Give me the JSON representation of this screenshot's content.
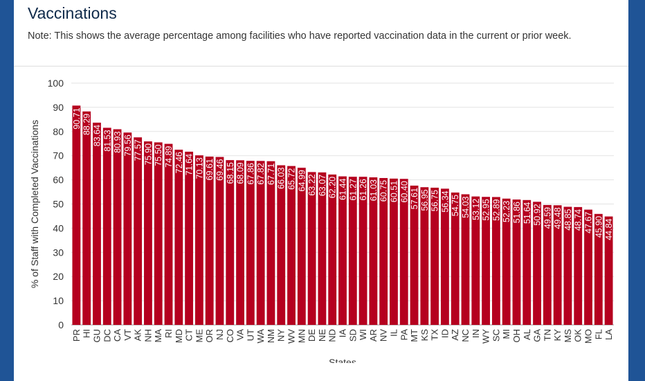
{
  "header": {
    "title": "Vaccinations",
    "note": "Note: This shows the average percentage among facilities who have reported vaccination data in the current or prior week."
  },
  "chart_data": {
    "type": "bar",
    "xlabel": "States",
    "ylabel": "% of Staff with Completed Vaccinations",
    "ylim": [
      0,
      100
    ],
    "yticks": [
      0,
      10,
      20,
      30,
      40,
      50,
      60,
      70,
      80,
      90,
      100
    ],
    "grid": true,
    "color": "#b5001f",
    "categories": [
      "PR",
      "HI",
      "GU",
      "DC",
      "CA",
      "VT",
      "AK",
      "NH",
      "MA",
      "RI",
      "MD",
      "CT",
      "ME",
      "OR",
      "NJ",
      "CO",
      "VA",
      "UT",
      "WA",
      "NM",
      "NY",
      "WV",
      "MN",
      "DE",
      "NE",
      "ND",
      "IA",
      "SD",
      "WI",
      "AR",
      "NV",
      "IL",
      "PA",
      "MT",
      "KS",
      "TX",
      "ID",
      "AZ",
      "NC",
      "IN",
      "WY",
      "SC",
      "MI",
      "OH",
      "AL",
      "GA",
      "TN",
      "KY",
      "MS",
      "OK",
      "MO",
      "FL",
      "LA"
    ],
    "values": [
      90.71,
      88.29,
      83.64,
      81.53,
      80.93,
      79.56,
      77.57,
      75.9,
      75.5,
      74.89,
      72.46,
      71.64,
      70.13,
      69.61,
      69.46,
      68.15,
      68.09,
      67.86,
      67.82,
      67.71,
      66.03,
      65.72,
      64.99,
      63.22,
      63.07,
      62.2,
      61.44,
      61.27,
      61.26,
      61.03,
      60.75,
      60.51,
      60.4,
      57.61,
      56.95,
      56.75,
      56.34,
      54.75,
      54.03,
      53.12,
      52.95,
      52.89,
      52.23,
      51.86,
      51.64,
      50.92,
      49.59,
      49.48,
      48.85,
      48.74,
      47.67,
      45.9,
      44.84
    ]
  }
}
